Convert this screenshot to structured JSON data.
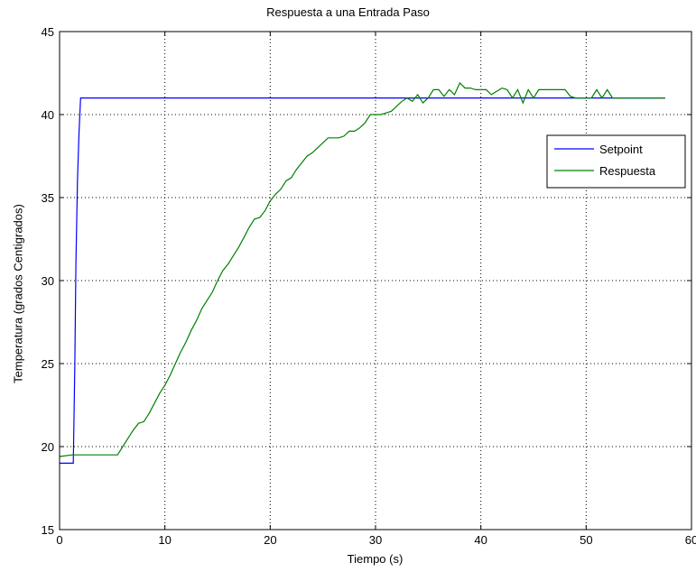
{
  "chart_data": {
    "type": "line",
    "title": "Respuesta a una Entrada Paso",
    "xlabel": "Tiempo (s)",
    "ylabel": "Temperatura (grados Centigrados)",
    "xlim": [
      0,
      60
    ],
    "ylim": [
      15,
      45
    ],
    "xticks": [
      "0",
      "10",
      "20",
      "30",
      "40",
      "50",
      "60"
    ],
    "yticks": [
      "15",
      "20",
      "25",
      "30",
      "35",
      "40",
      "45"
    ],
    "grid": true,
    "legend_position": "top-right",
    "series": [
      {
        "name": "Setpoint",
        "color": "#0000ff",
        "x": [
          0,
          1.3,
          1.45,
          1.55,
          1.7,
          1.85,
          2.0,
          57.5
        ],
        "y": [
          19.0,
          19.0,
          25.0,
          31.0,
          36.0,
          39.0,
          41.0,
          41.0
        ]
      },
      {
        "name": "Respuesta",
        "color": "#008000",
        "x": [
          0,
          1.2,
          5.5,
          6.0,
          6.5,
          7.0,
          7.5,
          8.0,
          8.5,
          9.0,
          9.5,
          10.0,
          10.5,
          11.0,
          11.5,
          12.0,
          12.5,
          13.0,
          13.5,
          14.0,
          14.5,
          15.0,
          15.5,
          16.0,
          16.5,
          17.0,
          17.5,
          18.0,
          18.5,
          19.0,
          19.5,
          20.0,
          20.5,
          21.0,
          21.5,
          22.0,
          22.5,
          23.0,
          23.5,
          24.0,
          24.5,
          25.0,
          25.5,
          26.0,
          26.5,
          27.0,
          27.5,
          28.0,
          28.5,
          29.0,
          29.5,
          30.0,
          30.5,
          31.0,
          31.5,
          32.0,
          32.5,
          33.0,
          33.5,
          34.0,
          34.5,
          35.0,
          35.5,
          36.0,
          36.5,
          37.0,
          37.5,
          38.0,
          38.5,
          39.0,
          39.5,
          40.0,
          40.5,
          41.0,
          41.5,
          42.0,
          42.5,
          43.0,
          43.5,
          44.0,
          44.5,
          45.0,
          45.5,
          46.0,
          46.5,
          47.0,
          47.5,
          48.0,
          48.5,
          49.0,
          49.5,
          50.0,
          50.5,
          51.0,
          51.5,
          52.0,
          52.5,
          53.0,
          53.5,
          54.0,
          55.0,
          56.0,
          57.5
        ],
        "y": [
          19.4,
          19.5,
          19.5,
          20.0,
          20.5,
          21.0,
          21.4,
          21.5,
          22.0,
          22.6,
          23.2,
          23.7,
          24.3,
          25.0,
          25.7,
          26.3,
          27.0,
          27.6,
          28.3,
          28.8,
          29.3,
          30.0,
          30.6,
          31.0,
          31.5,
          32.0,
          32.6,
          33.2,
          33.7,
          33.8,
          34.2,
          34.8,
          35.2,
          35.5,
          36.0,
          36.2,
          36.7,
          37.1,
          37.5,
          37.7,
          38.0,
          38.3,
          38.6,
          38.6,
          38.6,
          38.7,
          39.0,
          39.0,
          39.2,
          39.5,
          40.0,
          40.0,
          40.0,
          40.1,
          40.2,
          40.5,
          40.8,
          41.0,
          40.8,
          41.2,
          40.7,
          41.0,
          41.5,
          41.5,
          41.1,
          41.5,
          41.2,
          41.9,
          41.6,
          41.6,
          41.5,
          41.5,
          41.5,
          41.2,
          41.4,
          41.6,
          41.5,
          41.0,
          41.5,
          40.7,
          41.5,
          41.0,
          41.5,
          41.5,
          41.5,
          41.5,
          41.5,
          41.5,
          41.1,
          41.0,
          41.0,
          41.0,
          41.0,
          41.5,
          41.0,
          41.5,
          41.0,
          41.0,
          41.0,
          41.0,
          41.0,
          41.0,
          41.0
        ]
      }
    ]
  }
}
